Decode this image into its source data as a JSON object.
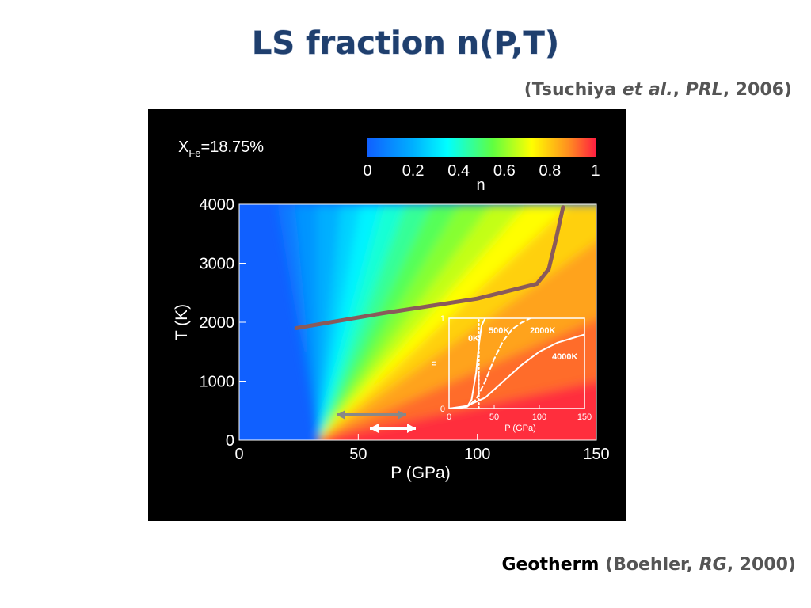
{
  "slide": {
    "title": "LS fraction n(P,T)",
    "citation": [
      "(Tsuchiya ",
      "et al.",
      ", ",
      "PRL",
      ", 2006)"
    ],
    "footer": {
      "bold": "Geotherm",
      "parts": [
        " (Boehler, ",
        "RG",
        ", 2000)"
      ]
    }
  },
  "chart_data": [
    {
      "type": "line",
      "annotation": {
        "main": "X",
        "sub": "Fe",
        "rest": "=18.75%"
      },
      "xlabel": "P (GPa)",
      "ylabel": "T (K)",
      "xlim": [
        0,
        150
      ],
      "ylim": [
        0,
        4000
      ],
      "xticks": [
        0,
        50,
        100,
        150
      ],
      "yticks": [
        0,
        1000,
        2000,
        3000,
        4000
      ],
      "series": [
        {
          "name": "Geotherm",
          "color": "#8a5a5a",
          "x": [
            24,
            60,
            100,
            125,
            130,
            133,
            136
          ],
          "values": [
            1900,
            2150,
            2400,
            2650,
            2900,
            3400,
            3950
          ]
        }
      ]
    },
    {
      "type": "colorbar",
      "xlabel": "n",
      "xlim": [
        0,
        1
      ],
      "xticks": [
        0,
        0.2,
        0.4,
        0.6,
        0.8,
        1
      ]
    },
    {
      "type": "line",
      "xlabel": "P (GPa)",
      "ylabel": "n",
      "xlim": [
        0,
        150
      ],
      "ylim": [
        0,
        1
      ],
      "xticks": [
        0,
        50,
        100,
        150
      ],
      "yticks": [
        0,
        1
      ],
      "series": [
        {
          "name": "0K",
          "color": "#ffffff",
          "dash": "2,3",
          "x": [
            33,
            33
          ],
          "values": [
            0,
            1
          ]
        },
        {
          "name": "500K",
          "color": "#ffffff",
          "dash": "none",
          "x": [
            0,
            20,
            25,
            30,
            33,
            36,
            40
          ],
          "values": [
            0,
            0.02,
            0.1,
            0.4,
            0.7,
            0.92,
            1
          ]
        },
        {
          "name": "2000K",
          "color": "#ffffff",
          "dash": "6,4",
          "x": [
            0,
            20,
            30,
            40,
            50,
            60,
            70,
            80,
            90
          ],
          "values": [
            0,
            0.02,
            0.1,
            0.3,
            0.55,
            0.75,
            0.88,
            0.95,
            1
          ]
        },
        {
          "name": "4000K",
          "color": "#ffffff",
          "dash": "none",
          "x": [
            0,
            20,
            40,
            60,
            80,
            100,
            120,
            150
          ],
          "values": [
            0,
            0.03,
            0.12,
            0.3,
            0.48,
            0.63,
            0.73,
            0.82
          ]
        }
      ]
    }
  ]
}
